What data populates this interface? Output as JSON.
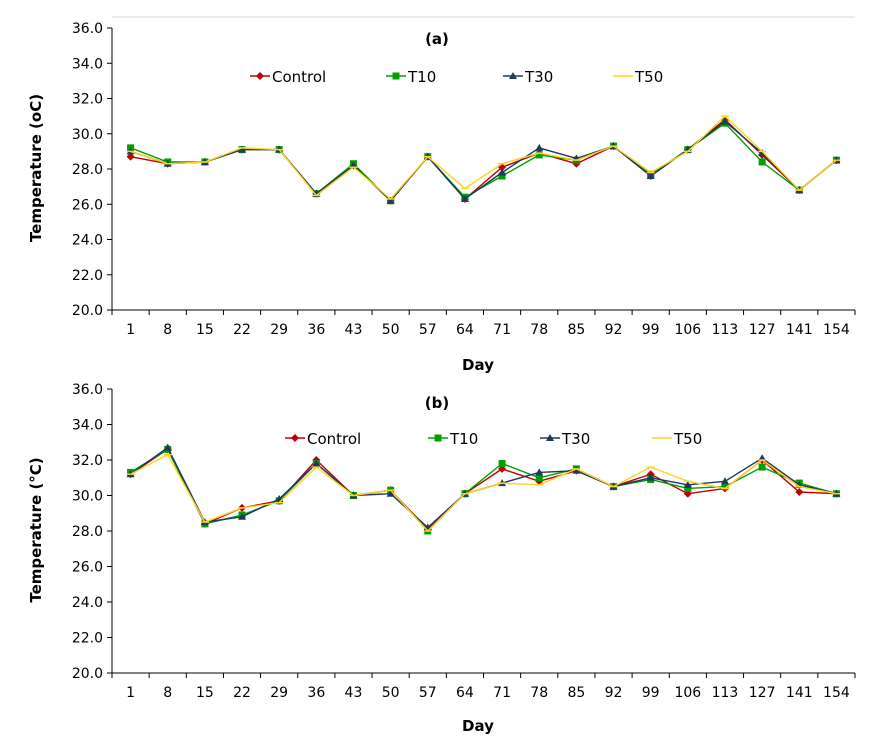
{
  "chart_data": [
    {
      "type": "line",
      "title": "(a)",
      "xlabel": "Day",
      "ylabel": "Temperature (oC)",
      "ylim": [
        20,
        36
      ],
      "yticks": [
        "20.0",
        "22.0",
        "24.0",
        "26.0",
        "28.0",
        "30.0",
        "32.0",
        "34.0",
        "36.0"
      ],
      "grid": false,
      "legend_position": "top",
      "categories": [
        "1",
        "8",
        "15",
        "22",
        "29",
        "36",
        "43",
        "50",
        "57",
        "64",
        "71",
        "78",
        "85",
        "92",
        "99",
        "106",
        "113",
        "127",
        "141",
        "154"
      ],
      "series": [
        {
          "name": "Control",
          "color": "#c00000",
          "marker": "diamond",
          "values": [
            28.7,
            28.3,
            28.4,
            29.1,
            29.1,
            26.6,
            28.2,
            26.2,
            28.7,
            26.3,
            28.1,
            28.9,
            28.3,
            29.3,
            27.6,
            29.1,
            30.8,
            28.8,
            26.8,
            28.5
          ]
        },
        {
          "name": "T10",
          "color": "#00a000",
          "marker": "square",
          "values": [
            29.2,
            28.4,
            28.4,
            29.1,
            29.1,
            26.6,
            28.3,
            26.2,
            28.7,
            26.4,
            27.6,
            28.8,
            28.5,
            29.3,
            27.7,
            29.1,
            30.6,
            28.4,
            26.8,
            28.5
          ]
        },
        {
          "name": "T30",
          "color": "#1f3864",
          "marker": "triangle",
          "values": [
            29.0,
            28.3,
            28.4,
            29.1,
            29.1,
            26.6,
            28.2,
            26.2,
            28.7,
            26.3,
            27.8,
            29.2,
            28.6,
            29.3,
            27.6,
            29.1,
            30.7,
            28.9,
            26.8,
            28.5
          ]
        },
        {
          "name": "T50",
          "color": "#ffd21f",
          "marker": "line",
          "values": [
            29.0,
            28.3,
            28.4,
            29.2,
            29.1,
            26.5,
            28.1,
            26.3,
            28.7,
            26.9,
            28.3,
            28.9,
            28.5,
            29.3,
            27.8,
            29.0,
            31.0,
            29.0,
            26.8,
            28.5
          ]
        }
      ]
    },
    {
      "type": "line",
      "title": "(b)",
      "xlabel": "Day",
      "ylabel": "Temperature (°C)",
      "ylim": [
        20,
        36
      ],
      "yticks": [
        "20.0",
        "22.0",
        "24.0",
        "26.0",
        "28.0",
        "30.0",
        "32.0",
        "34.0",
        "36.0"
      ],
      "grid": false,
      "legend_position": "top",
      "categories": [
        "1",
        "8",
        "15",
        "22",
        "29",
        "36",
        "43",
        "50",
        "57",
        "64",
        "71",
        "78",
        "85",
        "92",
        "99",
        "106",
        "113",
        "127",
        "141",
        "154"
      ],
      "series": [
        {
          "name": "Control",
          "color": "#c00000",
          "marker": "diamond",
          "values": [
            31.2,
            32.6,
            28.4,
            29.3,
            29.7,
            32.0,
            30.0,
            30.3,
            28.1,
            30.1,
            31.5,
            30.8,
            31.4,
            30.5,
            31.2,
            30.1,
            30.4,
            32.0,
            30.2,
            30.1
          ]
        },
        {
          "name": "T10",
          "color": "#00a000",
          "marker": "square",
          "values": [
            31.3,
            32.6,
            28.4,
            28.9,
            29.7,
            31.8,
            30.0,
            30.3,
            28.0,
            30.1,
            31.8,
            31.0,
            31.5,
            30.5,
            30.9,
            30.4,
            30.5,
            31.6,
            30.7,
            30.1
          ]
        },
        {
          "name": "T30",
          "color": "#1f3864",
          "marker": "triangle",
          "values": [
            31.2,
            32.7,
            28.5,
            28.8,
            29.8,
            31.8,
            30.0,
            30.1,
            28.2,
            30.1,
            30.7,
            31.3,
            31.4,
            30.5,
            31.0,
            30.6,
            30.8,
            32.1,
            30.6,
            30.1
          ]
        },
        {
          "name": "T50",
          "color": "#ffd21f",
          "marker": "line",
          "values": [
            31.2,
            32.3,
            28.5,
            29.3,
            29.6,
            31.6,
            30.0,
            30.3,
            28.0,
            30.1,
            30.7,
            30.6,
            31.5,
            30.5,
            31.6,
            30.8,
            30.4,
            32.0,
            30.5,
            30.1
          ]
        }
      ]
    }
  ]
}
